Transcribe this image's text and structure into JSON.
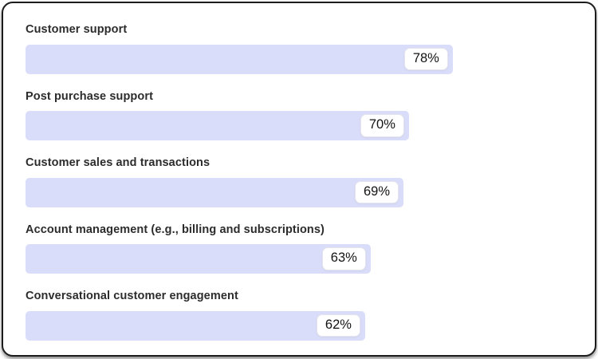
{
  "colors": {
    "bar_fill": "#d9ddf9",
    "badge_background": "#ffffff",
    "badge_border": "#e4e4ee",
    "card_border": "#1c1c1c",
    "label_text": "#2c2c2c",
    "value_text": "#131313",
    "card_background": "#ffffff"
  },
  "chart_data": {
    "type": "bar",
    "orientation": "horizontal",
    "title": "",
    "xlabel": "",
    "ylabel": "",
    "xlim": [
      0,
      100
    ],
    "grid": false,
    "legend": false,
    "value_label_position": "inside-end-badge",
    "categories": [
      "Customer support",
      "Post purchase support",
      "Customer sales and transactions",
      "Account management (e.g., billing and subscriptions)",
      "Conversational customer engagement"
    ],
    "values": [
      78,
      70,
      69,
      63,
      62
    ],
    "value_labels": [
      "78%",
      "70%",
      "69%",
      "63%",
      "62%"
    ]
  }
}
